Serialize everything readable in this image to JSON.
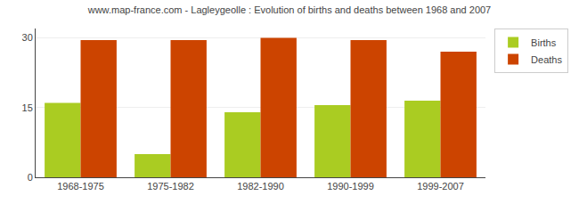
{
  "chart_data": {
    "type": "bar",
    "title": "www.map-france.com - Lagleygeolle : Evolution of births and deaths between 1968 and 2007",
    "categories": [
      "1968-1975",
      "1975-1982",
      "1982-1990",
      "1990-1999",
      "1999-2007"
    ],
    "series": [
      {
        "name": "Births",
        "color": "#aacc22",
        "values": [
          16,
          5,
          14,
          15.5,
          16.5
        ]
      },
      {
        "name": "Deaths",
        "color": "#cc4400",
        "values": [
          29.5,
          29.5,
          30,
          29.5,
          27
        ]
      }
    ],
    "ylim": [
      0,
      32
    ],
    "yticks": [
      0,
      15,
      30
    ],
    "grid": true,
    "legend": "upper right"
  }
}
